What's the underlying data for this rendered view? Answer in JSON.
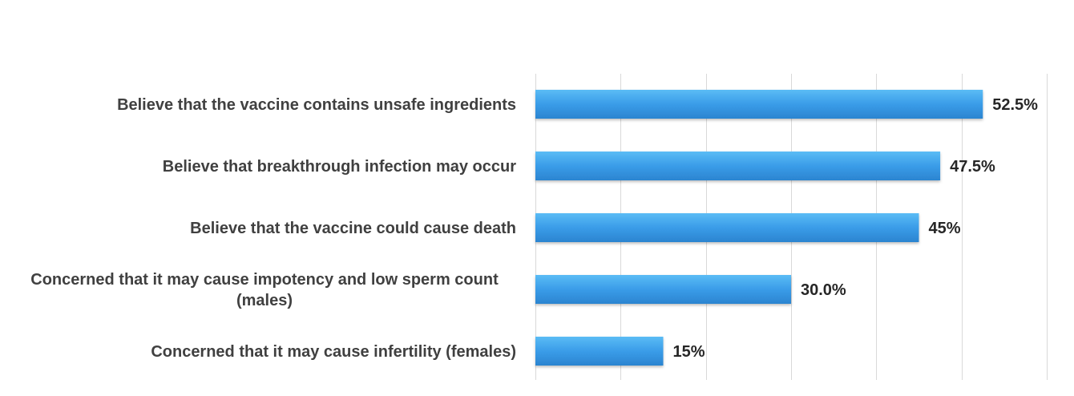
{
  "chart_data": {
    "type": "bar",
    "orientation": "horizontal",
    "categories": [
      "Believe that the vaccine contains unsafe ingredients",
      "Believe that breakthrough infection may occur",
      "Believe that the vaccine could cause death",
      "Concerned that it may cause impotency and low sperm count (males)",
      "Concerned that it may cause infertility (females)"
    ],
    "category_lines": [
      [
        "Believe that the vaccine contains unsafe ingredients"
      ],
      [
        "Believe that breakthrough infection may occur"
      ],
      [
        "Believe that the vaccine could cause death"
      ],
      [
        "Concerned that it may cause impotency and low sperm count",
        "(males)"
      ],
      [
        "Concerned that it may cause infertility (females)"
      ]
    ],
    "values": [
      52.5,
      47.5,
      45,
      30.0,
      15
    ],
    "value_labels": [
      "52.5%",
      "47.5%",
      "45%",
      "30.0%",
      "15%"
    ],
    "xlim": [
      0,
      60
    ],
    "grid": true,
    "legend": "none",
    "title": "",
    "xlabel": "",
    "ylabel": "",
    "colors": {
      "bar_light": "#5bbcf5",
      "bar_mid": "#3a9ce8",
      "bar_dark": "#2b84d0",
      "grid": "#d9d9d9"
    }
  }
}
